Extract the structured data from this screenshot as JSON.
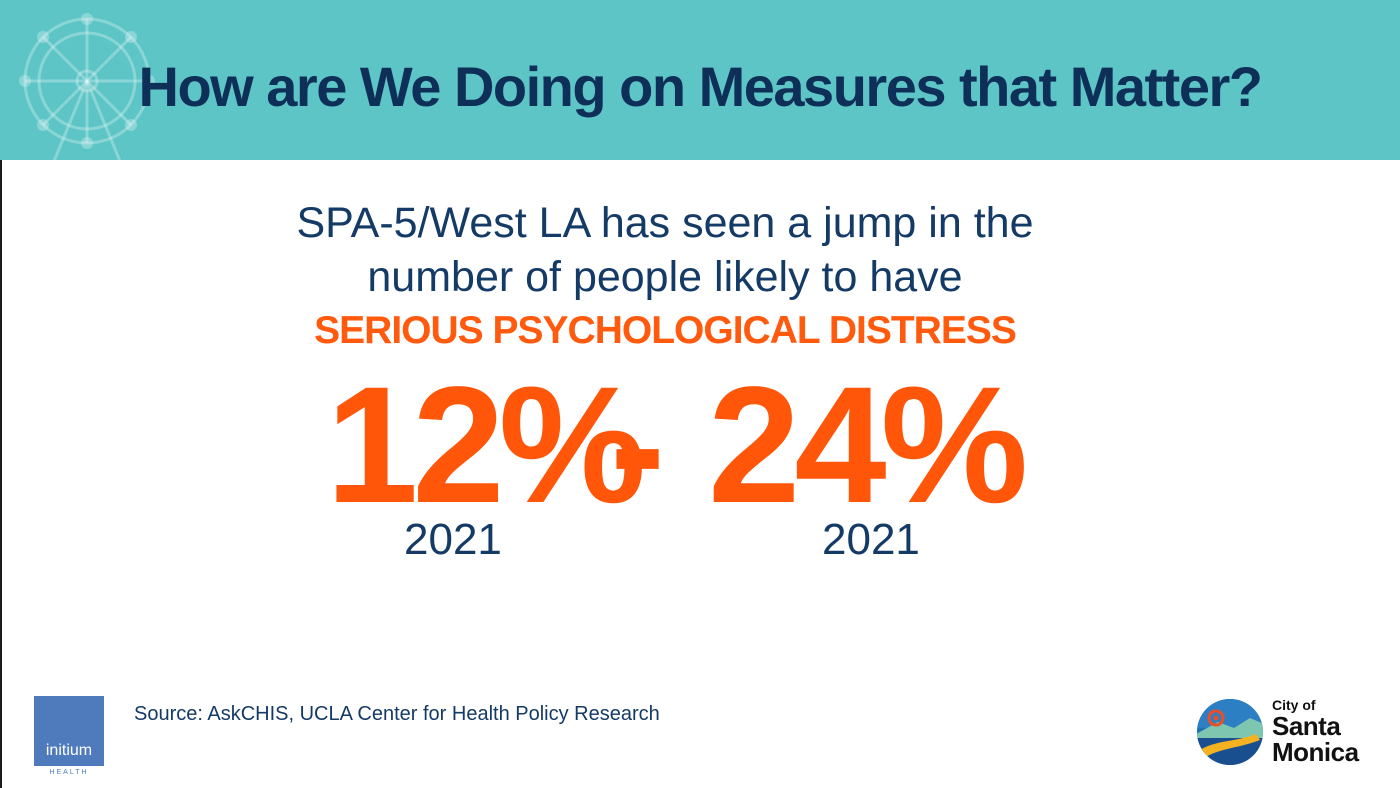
{
  "header": {
    "title": "How are We Doing on Measures that Matter?"
  },
  "intro": {
    "line1": "SPA-5/West LA has seen a jump in the",
    "line2": "number of people likely to have"
  },
  "highlight": "SERIOUS PSYCHOLOGICAL DISTRESS",
  "stats": {
    "before": {
      "value": "12%",
      "year": "2021"
    },
    "separator": "-",
    "after": {
      "value": "24%",
      "year": "2021"
    }
  },
  "source": "Source: AskCHIS, UCLA Center for Health Policy Research",
  "logos": {
    "initium": {
      "word": "initium",
      "sub": "HEALTH"
    },
    "santa_monica": {
      "city": "City of",
      "name1": "Santa",
      "name2": "Monica"
    }
  },
  "colors": {
    "header_bg": "#5ec5c6",
    "navy": "#143a66",
    "accent_orange": "#ff560a"
  },
  "icons": {
    "header": "ferris-wheel-icon",
    "brand": "santa-monica-emblem-icon"
  }
}
